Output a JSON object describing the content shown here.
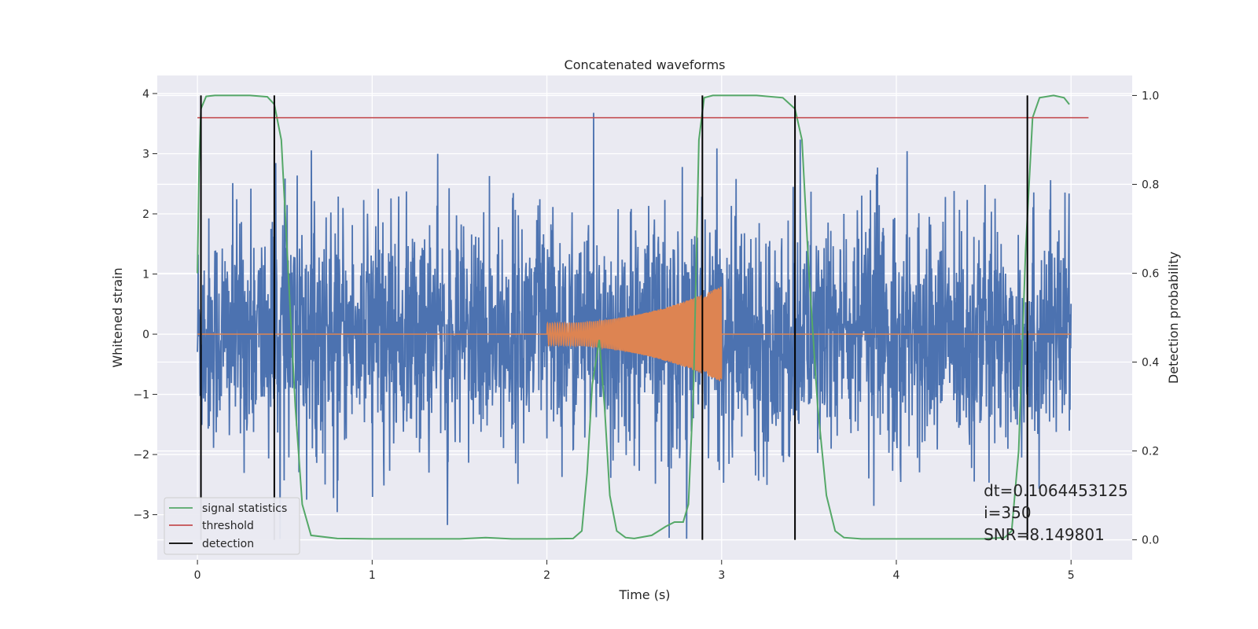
{
  "chart_data": {
    "type": "line",
    "title": "Concatenated waveforms",
    "xlabel": "Time (s)",
    "ylabel": "Whitened strain",
    "y2label": "Detection probability",
    "xlim": [
      -0.23,
      5.35
    ],
    "ylim": [
      -3.75,
      4.3
    ],
    "y2lim": [
      -0.045,
      1.045
    ],
    "xticks": [
      0,
      1,
      2,
      3,
      4,
      5
    ],
    "yticks": [
      -3,
      -2,
      -1,
      0,
      1,
      2,
      3,
      4
    ],
    "y2ticks": [
      0.0,
      0.2,
      0.4,
      0.6,
      0.8,
      1.0
    ],
    "grid": true,
    "legend_position": "lower-left",
    "series": [
      {
        "name": "",
        "kind": "noise",
        "color": "#4c72b0",
        "x_range": [
          0,
          5
        ],
        "envelope_typical": [
          -2.0,
          2.5
        ],
        "peak_max": 3.95,
        "peak_min": -3.4
      },
      {
        "name": "",
        "kind": "chirp",
        "color": "#dd8452",
        "x_range": [
          0,
          5
        ],
        "active_range": [
          2.0,
          3.0
        ],
        "amplitude_start": 0.18,
        "amplitude_end": 0.8
      },
      {
        "name": "signal statistics",
        "axis": "right",
        "color": "#55a868",
        "x": [
          0.0,
          0.01,
          0.02,
          0.05,
          0.1,
          0.2,
          0.3,
          0.4,
          0.44,
          0.48,
          0.52,
          0.56,
          0.6,
          0.65,
          0.8,
          1.0,
          1.5,
          1.65,
          1.8,
          2.0,
          2.15,
          2.2,
          2.23,
          2.26,
          2.3,
          2.33,
          2.36,
          2.4,
          2.45,
          2.5,
          2.6,
          2.68,
          2.73,
          2.78,
          2.81,
          2.84,
          2.87,
          2.9,
          2.95,
          3.05,
          3.2,
          3.35,
          3.42,
          3.46,
          3.5,
          3.55,
          3.6,
          3.65,
          3.7,
          3.8,
          4.0,
          4.5,
          4.62,
          4.66,
          4.7,
          4.74,
          4.78,
          4.82,
          4.9,
          4.96,
          4.99
        ],
        "y": [
          0.6,
          0.85,
          0.97,
          0.998,
          1.0,
          1.0,
          1.0,
          0.997,
          0.98,
          0.9,
          0.6,
          0.3,
          0.08,
          0.01,
          0.003,
          0.002,
          0.002,
          0.005,
          0.002,
          0.002,
          0.003,
          0.02,
          0.15,
          0.35,
          0.45,
          0.3,
          0.1,
          0.02,
          0.005,
          0.003,
          0.01,
          0.03,
          0.04,
          0.04,
          0.08,
          0.35,
          0.9,
          0.995,
          1.0,
          1.0,
          1.0,
          0.995,
          0.97,
          0.9,
          0.6,
          0.3,
          0.1,
          0.02,
          0.005,
          0.002,
          0.002,
          0.002,
          0.005,
          0.02,
          0.2,
          0.65,
          0.95,
          0.995,
          1.0,
          0.995,
          0.98
        ]
      },
      {
        "name": "threshold",
        "axis": "right",
        "color": "#c44e52",
        "x": [
          0.0,
          5.1
        ],
        "y": [
          0.95,
          0.95
        ]
      }
    ],
    "detections": {
      "name": "detection",
      "color": "#000000",
      "x": [
        0.02,
        0.44,
        2.89,
        3.42,
        4.75
      ]
    },
    "annotation": "dt=0.1064453125\n i=350\nSNR=8.149801"
  }
}
